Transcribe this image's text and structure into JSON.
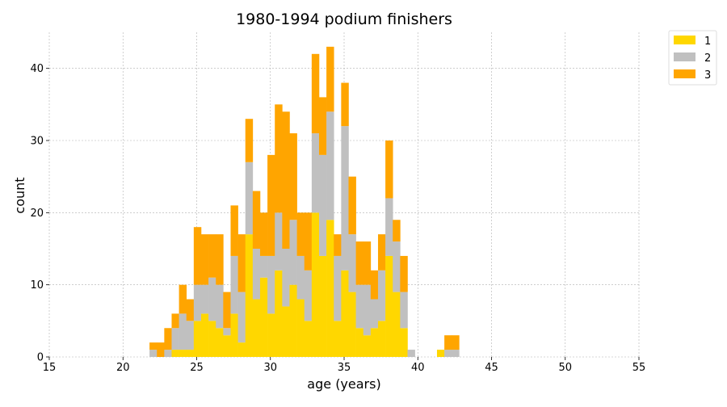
{
  "chart_data": {
    "type": "bar",
    "title": "1980-1994 podium finishers",
    "xlabel": "age (years)",
    "ylabel": "count",
    "xlim": [
      15,
      55
    ],
    "ylim": [
      0,
      45
    ],
    "x_ticks": [
      "15",
      "20",
      "25",
      "30",
      "35",
      "40",
      "45",
      "50",
      "55"
    ],
    "y_ticks": [
      "0",
      "10",
      "20",
      "30",
      "40"
    ],
    "grid": true,
    "stacked": true,
    "bin_width": 0.5,
    "legend_position": "outside-top-right",
    "bin_starts": [
      21.8,
      22.3,
      22.8,
      23.3,
      23.8,
      24.3,
      24.8,
      25.3,
      25.8,
      26.3,
      26.8,
      27.3,
      27.8,
      28.3,
      28.8,
      29.3,
      29.8,
      30.3,
      30.8,
      31.3,
      31.8,
      32.3,
      32.8,
      33.3,
      33.8,
      34.3,
      34.8,
      35.3,
      35.8,
      36.3,
      36.8,
      37.3,
      37.8,
      38.3,
      38.8,
      39.3,
      39.8,
      40.3,
      40.8,
      41.3,
      41.8,
      42.3
    ],
    "series": [
      {
        "name": "1",
        "color": "#FFD700",
        "values": [
          0,
          0,
          0,
          1,
          1,
          1,
          5,
          6,
          5,
          4,
          3,
          6,
          2,
          17,
          8,
          11,
          6,
          12,
          7,
          10,
          8,
          5,
          20,
          14,
          19,
          5,
          12,
          9,
          4,
          3,
          4,
          5,
          14,
          9,
          4,
          0,
          0,
          0,
          0,
          1,
          0,
          0
        ]
      },
      {
        "name": "2",
        "color": "#C0C0C0",
        "values": [
          1,
          0,
          1,
          3,
          5,
          4,
          5,
          4,
          6,
          6,
          1,
          8,
          7,
          10,
          7,
          3,
          8,
          8,
          8,
          9,
          6,
          7,
          11,
          14,
          15,
          9,
          20,
          8,
          6,
          7,
          4,
          7,
          8,
          7,
          5,
          1,
          0,
          0,
          0,
          0,
          1,
          1
        ]
      },
      {
        "name": "3",
        "color": "#FFA500",
        "values": [
          1,
          2,
          3,
          2,
          4,
          3,
          8,
          7,
          6,
          7,
          5,
          7,
          8,
          6,
          8,
          6,
          14,
          15,
          19,
          12,
          6,
          8,
          11,
          8,
          9,
          3,
          6,
          8,
          6,
          6,
          4,
          5,
          8,
          3,
          5,
          0,
          0,
          0,
          0,
          0,
          2,
          2
        ]
      }
    ]
  }
}
